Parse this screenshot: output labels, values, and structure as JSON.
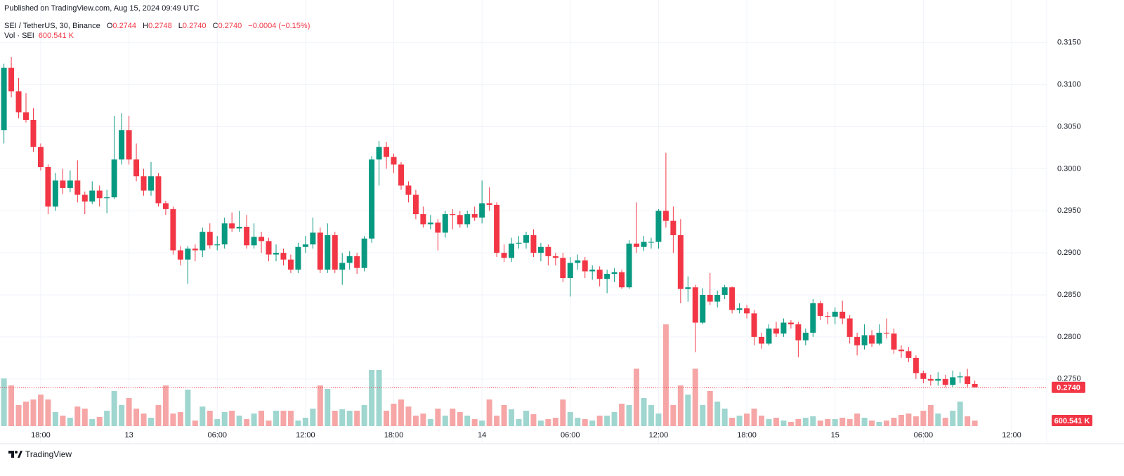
{
  "published": "Published on TradingView.com, Aug 15, 2024 09:49 UTC",
  "brand": "TradingView",
  "legend": {
    "symbol": "SEI / TetherUS, 30, Binance",
    "o_label": "O",
    "o": "0.2744",
    "h_label": "H",
    "h": "0.2748",
    "l_label": "L",
    "l": "0.2740",
    "c_label": "C",
    "change": "−0.0004 (−0.15%)"
  },
  "chart_data": {
    "type": "candlestick",
    "categories": [
      null,
      null,
      null,
      null,
      null,
      "18:00",
      null,
      null,
      null,
      null,
      null,
      null,
      null,
      null,
      null,
      null,
      null,
      "13",
      null,
      null,
      null,
      null,
      null,
      null,
      null,
      null,
      null,
      null,
      null,
      "06:00",
      null,
      null,
      null,
      null,
      null,
      null,
      null,
      null,
      null,
      null,
      null,
      "12:00",
      null,
      null,
      null,
      null,
      null,
      null,
      null,
      null,
      null,
      null,
      null,
      "18:00",
      null,
      null,
      null,
      null,
      null,
      null,
      null,
      null,
      null,
      null,
      null,
      "14",
      null,
      null,
      null,
      null,
      null,
      null,
      null,
      null,
      null,
      null,
      null,
      "06:00",
      null,
      null,
      null,
      null,
      null,
      null,
      null,
      null,
      null,
      null,
      null,
      "12:00",
      null,
      null,
      null,
      null,
      null,
      null,
      null,
      null,
      null,
      null,
      null,
      "18:00",
      null,
      null,
      null,
      null,
      null,
      null,
      null,
      null,
      null,
      null,
      null,
      "15",
      null,
      null,
      null,
      null,
      null,
      null,
      null,
      null,
      null,
      null,
      null,
      "06:00",
      null,
      null,
      null,
      null,
      null,
      null,
      null,
      null,
      null,
      null,
      null,
      "12:00"
    ],
    "open": [
      0.3046,
      0.312,
      0.3092,
      0.3067,
      0.3058,
      0.3026,
      0.3002,
      0.2955,
      0.2986,
      0.2977,
      0.2986,
      0.2969,
      0.2961,
      0.2974,
      0.2965,
      0.2966,
      0.3011,
      0.3046,
      0.3011,
      0.2991,
      0.2974,
      0.2991,
      0.2959,
      0.2952,
      0.2903,
      0.2892,
      0.2905,
      0.2903,
      0.2925,
      0.2909,
      0.291,
      0.2935,
      0.2929,
      0.2931,
      0.2909,
      0.2919,
      0.2914,
      0.2898,
      0.29,
      0.2892,
      0.288,
      0.2907,
      0.291,
      0.2924,
      0.288,
      0.2921,
      0.288,
      0.2888,
      0.2896,
      0.2882,
      0.2917,
      0.3011,
      0.3026,
      0.3014,
      0.3005,
      0.298,
      0.2969,
      0.2946,
      0.2934,
      0.2936,
      0.2924,
      0.2946,
      0.2945,
      0.2934,
      0.2946,
      0.2942,
      0.2959,
      0.2957,
      0.29,
      0.2894,
      0.2911,
      0.2912,
      0.2921,
      0.29,
      0.2907,
      0.2896,
      0.2894,
      0.287,
      0.2888,
      0.2891,
      0.2878,
      0.288,
      0.2869,
      0.2875,
      0.2877,
      0.2859,
      0.2911,
      0.2907,
      0.2913,
      0.2913,
      0.295,
      0.2938,
      0.2921,
      0.2857,
      0.2859,
      0.2817,
      0.285,
      0.2842,
      0.285,
      0.2859,
      0.2832,
      0.2834,
      0.2828,
      0.28,
      0.2792,
      0.281,
      0.2804,
      0.2817,
      0.2815,
      0.2796,
      0.2805,
      0.284,
      0.2825,
      0.2824,
      0.283,
      0.2822,
      0.28,
      0.279,
      0.2802,
      0.2792,
      0.2805,
      0.2804,
      0.2785,
      0.2783,
      0.2775,
      0.2757,
      0.275,
      0.2748,
      0.275,
      0.2743,
      0.2752,
      0.2753,
      0.2744,
      null,
      null,
      null,
      null,
      null
    ],
    "high": [
      0.3125,
      0.3133,
      0.3108,
      0.309,
      0.3072,
      0.303,
      0.3005,
      0.2995,
      0.3,
      0.2998,
      0.301,
      0.2973,
      0.2985,
      0.298,
      0.2975,
      0.3063,
      0.3066,
      0.3063,
      0.303,
      0.3,
      0.3008,
      0.2995,
      0.2962,
      0.2955,
      0.2908,
      0.2908,
      0.291,
      0.293,
      0.2935,
      0.292,
      0.2942,
      0.2948,
      0.295,
      0.2945,
      0.2935,
      0.2925,
      0.2918,
      0.291,
      0.2905,
      0.2898,
      0.2912,
      0.292,
      0.2942,
      0.293,
      0.2935,
      0.2925,
      0.29,
      0.2902,
      0.29,
      0.292,
      0.3015,
      0.3033,
      0.3032,
      0.3018,
      0.3008,
      0.2985,
      0.2975,
      0.2955,
      0.2945,
      0.294,
      0.295,
      0.2952,
      0.295,
      0.295,
      0.2955,
      0.2986,
      0.2978,
      0.296,
      0.291,
      0.2918,
      0.292,
      0.2925,
      0.2928,
      0.2912,
      0.291,
      0.29,
      0.29,
      0.2895,
      0.2898,
      0.2895,
      0.2885,
      0.2884,
      0.288,
      0.2882,
      0.288,
      0.2915,
      0.296,
      0.292,
      0.2918,
      0.2952,
      0.3019,
      0.2955,
      0.294,
      0.2872,
      0.2862,
      0.2858,
      0.2876,
      0.2855,
      0.2862,
      0.286,
      0.284,
      0.2838,
      0.2832,
      0.2805,
      0.2815,
      0.2818,
      0.2822,
      0.282,
      0.2818,
      0.281,
      0.2845,
      0.2843,
      0.283,
      0.2835,
      0.2843,
      0.2826,
      0.2805,
      0.2815,
      0.2808,
      0.2815,
      0.2822,
      0.281,
      0.279,
      0.2788,
      0.2778,
      0.276,
      0.2755,
      0.2758,
      0.2755,
      0.276,
      0.2758,
      0.2762,
      0.2748,
      null,
      null,
      null,
      null,
      null
    ],
    "low": [
      0.303,
      0.3085,
      0.306,
      0.3055,
      0.302,
      0.2998,
      0.2946,
      0.295,
      0.297,
      0.2972,
      0.296,
      0.2946,
      0.2958,
      0.2955,
      0.2947,
      0.2964,
      0.3005,
      0.3005,
      0.2985,
      0.2968,
      0.2968,
      0.2955,
      0.2945,
      0.2898,
      0.2885,
      0.2863,
      0.289,
      0.2895,
      0.2905,
      0.2903,
      0.2905,
      0.2925,
      0.2925,
      0.2905,
      0.2905,
      0.29,
      0.289,
      0.289,
      0.2885,
      0.2876,
      0.2876,
      0.29,
      0.2905,
      0.2876,
      0.2876,
      0.2876,
      0.2862,
      0.288,
      0.2875,
      0.2878,
      0.2912,
      0.298,
      0.3,
      0.2995,
      0.2975,
      0.296,
      0.294,
      0.293,
      0.2928,
      0.2903,
      0.2918,
      0.2928,
      0.293,
      0.293,
      0.2938,
      0.2935,
      0.295,
      0.2895,
      0.2889,
      0.2889,
      0.2905,
      0.2905,
      0.2895,
      0.289,
      0.2885,
      0.2885,
      0.2865,
      0.2848,
      0.288,
      0.287,
      0.2868,
      0.286,
      0.2852,
      0.2865,
      0.2857,
      0.2857,
      0.29,
      0.2902,
      0.2905,
      0.2905,
      0.293,
      0.29,
      0.284,
      0.2842,
      0.2782,
      0.2815,
      0.2838,
      0.2835,
      0.2845,
      0.2828,
      0.2828,
      0.2822,
      0.279,
      0.2786,
      0.279,
      0.28,
      0.28,
      0.281,
      0.2776,
      0.279,
      0.28,
      0.282,
      0.2815,
      0.2815,
      0.2815,
      0.2792,
      0.2778,
      0.2785,
      0.2788,
      0.279,
      0.2798,
      0.278,
      0.2775,
      0.277,
      0.275,
      0.2745,
      0.2742,
      0.2742,
      0.274,
      0.274,
      0.2745,
      0.274,
      0.274,
      null,
      null,
      null,
      null,
      null
    ],
    "close": [
      0.312,
      0.3092,
      0.3067,
      0.3058,
      0.3026,
      0.3002,
      0.2955,
      0.2986,
      0.2977,
      0.2986,
      0.2969,
      0.2961,
      0.2974,
      0.2965,
      0.2966,
      0.3011,
      0.3046,
      0.3011,
      0.2991,
      0.2974,
      0.2991,
      0.2959,
      0.2952,
      0.2903,
      0.2892,
      0.2905,
      0.2903,
      0.2925,
      0.2909,
      0.291,
      0.2935,
      0.2929,
      0.2931,
      0.2909,
      0.2919,
      0.2914,
      0.2898,
      0.29,
      0.2892,
      0.288,
      0.2907,
      0.291,
      0.2924,
      0.288,
      0.2921,
      0.288,
      0.2888,
      0.2896,
      0.2882,
      0.2917,
      0.3011,
      0.3026,
      0.3014,
      0.3005,
      0.298,
      0.2969,
      0.2946,
      0.2934,
      0.2936,
      0.2924,
      0.2946,
      0.2945,
      0.2934,
      0.2946,
      0.2942,
      0.2959,
      0.2957,
      0.29,
      0.2894,
      0.2911,
      0.2912,
      0.2921,
      0.29,
      0.2907,
      0.2896,
      0.2894,
      0.287,
      0.2888,
      0.2891,
      0.2878,
      0.288,
      0.2869,
      0.2875,
      0.2877,
      0.2859,
      0.2911,
      0.2907,
      0.2913,
      0.2913,
      0.295,
      0.2938,
      0.2921,
      0.2857,
      0.2859,
      0.2817,
      0.285,
      0.2842,
      0.285,
      0.2859,
      0.2832,
      0.2834,
      0.2828,
      0.28,
      0.2792,
      0.281,
      0.2804,
      0.2817,
      0.2815,
      0.2796,
      0.2805,
      0.284,
      0.2825,
      0.2824,
      0.283,
      0.2822,
      0.28,
      0.279,
      0.2802,
      0.2792,
      0.2805,
      0.2804,
      0.2785,
      0.2783,
      0.2775,
      0.2757,
      0.275,
      0.2748,
      0.275,
      0.2743,
      0.2752,
      0.2753,
      0.2744,
      0.274,
      null,
      null,
      null,
      null,
      null
    ],
    "up_color": "#089981",
    "down_color": "#f23645",
    "ylim": [
      0.2673,
      0.3184
    ],
    "yticks": [
      {
        "value": 0.275,
        "label": "0.2750"
      },
      {
        "value": 0.28,
        "label": "0.2800"
      },
      {
        "value": 0.285,
        "label": "0.2850"
      },
      {
        "value": 0.29,
        "label": "0.2900"
      },
      {
        "value": 0.295,
        "label": "0.2950"
      },
      {
        "value": 0.3,
        "label": "0.3000"
      },
      {
        "value": 0.305,
        "label": "0.3050"
      },
      {
        "value": 0.31,
        "label": "0.3100"
      },
      {
        "value": 0.315,
        "label": "0.3150"
      }
    ],
    "grid": true,
    "last_price_label": "0.2740",
    "volume": {
      "name": "Vol · SEI",
      "up_color": "#9fd6cf",
      "down_color": "#f6a6a6",
      "values": [
        5100000,
        4350000,
        2250000,
        2625000,
        2850000,
        3375000,
        2850000,
        1500000,
        1125000,
        900000,
        2100000,
        1875000,
        750000,
        975000,
        1650000,
        3750000,
        2250000,
        3000000,
        1875000,
        1350000,
        900000,
        2250000,
        4350000,
        1350000,
        1500000,
        3900000,
        600000,
        2100000,
        1650000,
        750000,
        1500000,
        1650000,
        1125000,
        750000,
        1350000,
        1650000,
        600000,
        1650000,
        1650000,
        1650000,
        600000,
        900000,
        1875000,
        4350000,
        3975000,
        1650000,
        1800000,
        1650000,
        1650000,
        2250000,
        6000000,
        6000000,
        1650000,
        2400000,
        2850000,
        2100000,
        1125000,
        1350000,
        750000,
        1875000,
        1125000,
        1875000,
        1500000,
        1125000,
        750000,
        600000,
        2850000,
        1125000,
        2250000,
        1800000,
        750000,
        1650000,
        1275000,
        600000,
        750000,
        900000,
        2850000,
        1500000,
        900000,
        750000,
        600000,
        1125000,
        1125000,
        1500000,
        2400000,
        2250000,
        6150000,
        3000000,
        2250000,
        1350000,
        10875000,
        2250000,
        4350000,
        3375000,
        6150000,
        2250000,
        3750000,
        2625000,
        1875000,
        900000,
        1125000,
        1350000,
        1875000,
        1125000,
        750000,
        900000,
        600000,
        450000,
        750000,
        900000,
        1050000,
        600000,
        750000,
        750000,
        900000,
        750000,
        1350000,
        900000,
        600000,
        450000,
        600000,
        900000,
        1200000,
        1350000,
        1050000,
        1650000,
        2250000,
        1350000,
        900000,
        1650000,
        2625000,
        1050000,
        600541,
        null,
        null,
        null,
        null,
        null
      ],
      "value_labels": [
        null,
        null,
        null,
        null,
        null,
        null,
        null,
        null,
        null,
        null,
        null,
        null,
        null,
        null,
        null,
        null,
        null,
        null,
        null,
        null,
        null,
        null,
        null,
        null,
        null,
        null,
        null,
        null,
        null,
        null,
        null,
        null,
        null,
        null,
        null,
        null,
        null,
        null,
        null,
        null,
        null,
        null,
        null,
        null,
        null,
        null,
        null,
        null,
        null,
        null,
        null,
        null,
        null,
        null,
        null,
        null,
        null,
        null,
        null,
        null,
        null,
        null,
        null,
        null,
        null,
        null,
        null,
        null,
        null,
        null,
        null,
        null,
        null,
        null,
        null,
        null,
        null,
        null,
        null,
        null,
        null,
        null,
        null,
        null,
        null,
        null,
        null,
        null,
        null,
        null,
        null,
        null,
        null,
        null,
        null,
        null,
        null,
        null,
        null,
        null,
        null,
        null,
        null,
        null,
        null,
        null,
        null,
        null,
        null,
        null,
        null,
        null,
        null,
        null,
        null,
        null,
        null,
        null,
        null,
        null,
        null,
        null,
        null,
        null,
        null,
        null,
        null,
        null,
        null,
        null,
        null,
        null,
        "600.541 K",
        null,
        null,
        null,
        null,
        null
      ]
    }
  }
}
